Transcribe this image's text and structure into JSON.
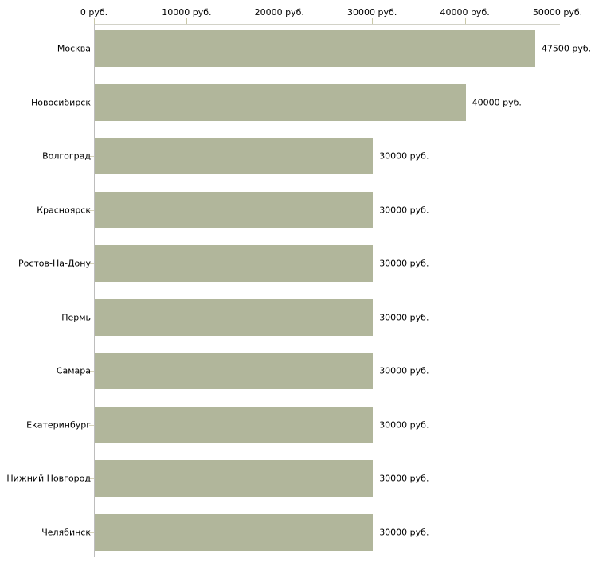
{
  "chart_data": {
    "type": "bar",
    "orientation": "horizontal",
    "title": "",
    "xlabel": "",
    "ylabel": "",
    "unit": "руб.",
    "categories": [
      "Москва",
      "Новосибирск",
      "Волгоград",
      "Красноярск",
      "Ростов-На-Дону",
      "Пермь",
      "Самара",
      "Екатеринбург",
      "Нижний Новгород",
      "Челябинск"
    ],
    "values": [
      47500,
      40000,
      30000,
      30000,
      30000,
      30000,
      30000,
      30000,
      30000,
      30000
    ],
    "value_labels": [
      "47500 руб.",
      "40000 руб.",
      "30000 руб.",
      "30000 руб.",
      "30000 руб.",
      "30000 руб.",
      "30000 руб.",
      "30000 руб.",
      "30000 руб.",
      "30000 руб."
    ],
    "x_ticks": [
      {
        "value": 0,
        "label": "0 руб."
      },
      {
        "value": 10000,
        "label": "10000 руб."
      },
      {
        "value": 20000,
        "label": "20000 руб."
      },
      {
        "value": 30000,
        "label": "30000 руб."
      },
      {
        "value": 40000,
        "label": "40000 руб."
      },
      {
        "value": 50000,
        "label": "50000 руб."
      }
    ],
    "xlim": [
      0,
      50000
    ],
    "axis_position": "top",
    "grid": false,
    "legend": null,
    "colors": {
      "bar": "#b1b69b",
      "axis_line": "#d2d2c8",
      "x_tick": "#c9c8a8",
      "cat_tick": "#d6d3ba",
      "spine": "#bdbdbd",
      "text": "#000000",
      "background": "#ffffff"
    }
  }
}
